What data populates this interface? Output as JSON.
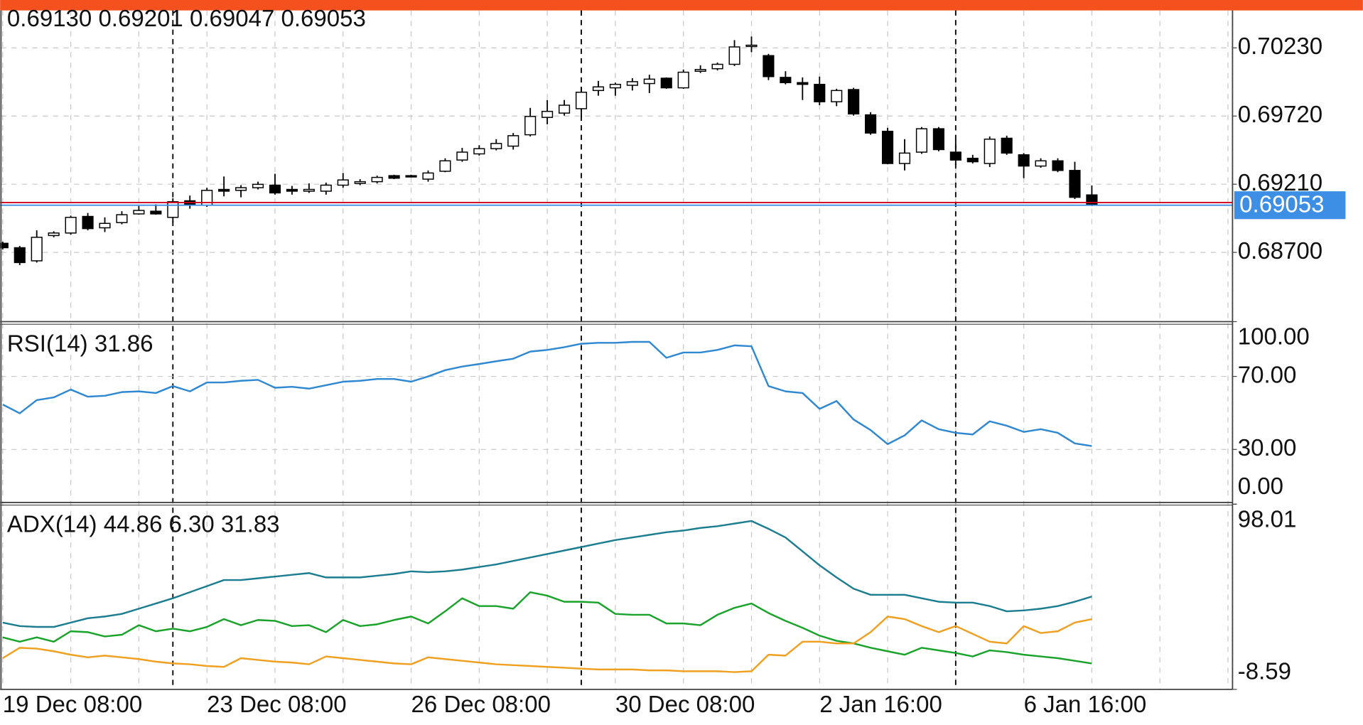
{
  "chart_data": [
    {
      "type": "candlestick",
      "ohlc_label": "0.69130 0.69201 0.69047 0.69053",
      "categories": [
        "19 Dec 08:00",
        null,
        null,
        null,
        null,
        null,
        null,
        null,
        null,
        null,
        null,
        null,
        "23 Dec 08:00",
        null,
        null,
        null,
        null,
        null,
        null,
        null,
        null,
        null,
        null,
        null,
        "26 Dec 08:00",
        null,
        null,
        null,
        null,
        null,
        null,
        null,
        null,
        null,
        null,
        null,
        "30 Dec 08:00",
        null,
        null,
        null,
        null,
        null,
        null,
        null,
        null,
        null,
        null,
        null,
        "2 Jan 16:00",
        null,
        null,
        null,
        null,
        null,
        null,
        null,
        null,
        null,
        null,
        null,
        "6 Jan 16:00",
        null,
        null,
        null,
        null
      ],
      "open": [
        0.68768,
        0.68735,
        0.68637,
        0.68826,
        0.68845,
        0.68969,
        0.68884,
        0.68923,
        0.68988,
        0.69008,
        0.68962,
        0.69086,
        0.69053,
        0.69171,
        0.69164,
        0.69184,
        0.69203,
        0.69171,
        0.69158,
        0.69158,
        0.69203,
        0.69216,
        0.69229,
        0.69274,
        0.69274,
        0.69248,
        0.69307,
        0.69391,
        0.69437,
        0.69476,
        0.69495,
        0.6958,
        0.6971,
        0.69742,
        0.69775,
        0.69911,
        0.69931,
        0.6995,
        0.69963,
        0.70003,
        0.69931,
        0.70055,
        0.70074,
        0.70107,
        0.7025,
        0.70172,
        0.70009,
        0.6997,
        0.69957,
        0.69827,
        0.69918,
        0.69729,
        0.69606,
        0.69365,
        0.6945,
        0.69625,
        0.6945,
        0.69404,
        0.69365,
        0.69554,
        0.6943,
        0.69346,
        0.69385,
        0.69313,
        0.6913
      ],
      "high": [
        0.6878,
        0.68748,
        0.68865,
        0.68858,
        0.68975,
        0.68995,
        0.68962,
        0.69008,
        0.69047,
        0.6906,
        0.69105,
        0.69125,
        0.69184,
        0.69268,
        0.69203,
        0.69229,
        0.69288,
        0.69197,
        0.69216,
        0.69222,
        0.69294,
        0.69248,
        0.69274,
        0.69281,
        0.69281,
        0.69313,
        0.69404,
        0.69482,
        0.69502,
        0.69547,
        0.69593,
        0.69781,
        0.6984,
        0.6984,
        0.69938,
        0.69983,
        0.6997,
        0.70003,
        0.70029,
        0.70009,
        0.70068,
        0.701,
        0.7012,
        0.70288,
        0.70315,
        0.70185,
        0.70055,
        0.70009,
        0.70015,
        0.69924,
        0.69931,
        0.69749,
        0.69632,
        0.69547,
        0.69638,
        0.69638,
        0.69547,
        0.6943,
        0.69567,
        0.69573,
        0.69443,
        0.69404,
        0.69404,
        0.69378,
        0.69201
      ],
      "low": [
        0.68722,
        0.68605,
        0.68624,
        0.68813,
        0.68832,
        0.68865,
        0.68852,
        0.6891,
        0.68982,
        0.68982,
        0.68923,
        0.69027,
        0.6904,
        0.69119,
        0.69112,
        0.69171,
        0.69132,
        0.69132,
        0.69145,
        0.69132,
        0.69184,
        0.69203,
        0.69216,
        0.69248,
        0.69261,
        0.69229,
        0.693,
        0.69378,
        0.69424,
        0.69463,
        0.69469,
        0.69567,
        0.69658,
        0.69723,
        0.6971,
        0.69872,
        0.69872,
        0.69911,
        0.69892,
        0.69924,
        0.69924,
        0.70042,
        0.70061,
        0.70094,
        0.70198,
        0.69989,
        0.69957,
        0.6984,
        0.69801,
        0.69794,
        0.69723,
        0.6958,
        0.69359,
        0.69313,
        0.69437,
        0.69456,
        0.69352,
        0.69365,
        0.69339,
        0.6943,
        0.69255,
        0.69333,
        0.693,
        0.69099,
        0.69047
      ],
      "close": [
        0.68735,
        0.68624,
        0.68813,
        0.68845,
        0.68962,
        0.68878,
        0.68917,
        0.68982,
        0.69014,
        0.68988,
        0.69079,
        0.69053,
        0.69164,
        0.69158,
        0.69184,
        0.69209,
        0.69145,
        0.69158,
        0.69171,
        0.69203,
        0.69242,
        0.69229,
        0.69261,
        0.69255,
        0.69268,
        0.69294,
        0.69385,
        0.6945,
        0.69476,
        0.69515,
        0.69573,
        0.69717,
        0.69755,
        0.69801,
        0.69898,
        0.69938,
        0.69957,
        0.69977,
        0.69996,
        0.69931,
        0.70048,
        0.70068,
        0.70107,
        0.70237,
        0.7025,
        0.70015,
        0.6997,
        0.69957,
        0.69827,
        0.69911,
        0.69736,
        0.69593,
        0.69365,
        0.69443,
        0.69625,
        0.69469,
        0.69391,
        0.69378,
        0.69547,
        0.69443,
        0.69346,
        0.69385,
        0.69313,
        0.69112,
        0.69053
      ],
      "up_color": "#ffffff",
      "down_color": "#000000",
      "last_price": 0.69053,
      "last_price_color": "#3d8fe6",
      "ask_line": 0.69073,
      "ask_color": "#d0021b",
      "ylim": [
        0.68182,
        0.70497
      ],
      "yticks": [
        {
          "value": 0.687,
          "label": "0.68700"
        },
        {
          "value": 0.6921,
          "label": "0.69210"
        },
        {
          "value": 0.6972,
          "label": "0.69720"
        },
        {
          "value": 0.7023,
          "label": "0.70230"
        }
      ],
      "grid": true
    },
    {
      "type": "line",
      "label": "RSI(14) 31.86",
      "color": "#2f88d0",
      "values": [
        54.6,
        49.8,
        57,
        58.5,
        62.8,
        58.9,
        59.4,
        61.4,
        61.8,
        60.9,
        64.7,
        61.8,
        66.7,
        66.7,
        67.6,
        68.1,
        63.8,
        64.3,
        63.3,
        65.2,
        67.1,
        67.6,
        68.6,
        68.6,
        67.1,
        70,
        73.4,
        75.4,
        76.8,
        78.3,
        79.7,
        83.6,
        84.5,
        86,
        87.9,
        88.4,
        88.4,
        88.9,
        88.9,
        80.2,
        83.1,
        83.1,
        84.5,
        87,
        86.5,
        64.7,
        61.8,
        60.9,
        52.2,
        56.5,
        46.4,
        40.6,
        32.9,
        37.7,
        45.9,
        41.1,
        39.1,
        38.2,
        45.4,
        43,
        39.6,
        41.1,
        39.1,
        33.3,
        31.86
      ],
      "ylim": [
        0,
        100
      ],
      "yticks": [
        {
          "value": 0,
          "label": "0.00"
        },
        {
          "value": 30,
          "label": "30.00"
        },
        {
          "value": 70,
          "label": "70.00"
        },
        {
          "value": 100,
          "label": "100.00"
        }
      ],
      "grid": true
    },
    {
      "type": "line",
      "label": "ADX(14) 44.86 6.30 31.83",
      "series": [
        {
          "color": "#1b7d8f",
          "values": [
            29.85,
            27.85,
            27.35,
            27.35,
            29.85,
            32.35,
            33.35,
            34.85,
            37.85,
            40.85,
            43.85,
            47.35,
            50.85,
            54.35,
            54.35,
            55.35,
            56.35,
            57.35,
            58.35,
            55.85,
            55.85,
            55.85,
            56.85,
            57.85,
            59.35,
            58.85,
            59.35,
            60.35,
            61.85,
            63.35,
            65.35,
            67.35,
            69.35,
            71.35,
            73.35,
            75.35,
            77.35,
            78.85,
            80.35,
            81.85,
            82.85,
            84.35,
            85.35,
            86.85,
            88.35,
            83.85,
            78.85,
            70.85,
            62.85,
            55.85,
            49.35,
            45.85,
            45.85,
            45.85,
            43.85,
            41.85,
            41.35,
            41.35,
            39.35,
            36.35,
            36.85,
            37.85,
            39.35,
            41.85,
            44.86
          ]
        },
        {
          "color": "#1aa32a",
          "values": [
            21.35,
            18.85,
            21.35,
            18.85,
            24.85,
            24.35,
            21.85,
            22.85,
            28.35,
            24.85,
            26.35,
            24.85,
            27.35,
            31.85,
            28.35,
            31.35,
            30.85,
            27.85,
            28.35,
            24.35,
            31.35,
            27.85,
            28.85,
            31.35,
            33.35,
            29.35,
            36.35,
            43.85,
            39.35,
            39.35,
            37.85,
            47.35,
            45.35,
            41.85,
            41.85,
            41.35,
            34.85,
            34.35,
            34.35,
            29.35,
            29.35,
            28.35,
            34.35,
            38.35,
            40.85,
            35.35,
            30.85,
            26.85,
            22.35,
            19.35,
            17.85,
            15.35,
            13.35,
            11.35,
            15.35,
            13.85,
            12.35,
            10.35,
            13.85,
            12.85,
            11.35,
            10.35,
            9.35,
            7.85,
            6.3
          ]
        },
        {
          "color": "#f0a020",
          "values": [
            9.35,
            15.35,
            14.85,
            13.35,
            11.35,
            9.85,
            10.85,
            9.85,
            8.85,
            7.35,
            6.35,
            5.85,
            4.85,
            4.35,
            9.35,
            8.35,
            7.35,
            6.85,
            5.85,
            10.35,
            9.35,
            8.35,
            7.35,
            6.35,
            5.85,
            9.85,
            8.85,
            7.85,
            6.85,
            5.85,
            5.35,
            4.85,
            4.35,
            3.85,
            3.35,
            2.85,
            2.85,
            2.85,
            2.35,
            2.35,
            1.85,
            1.85,
            1.85,
            1.35,
            1.85,
            11.35,
            10.85,
            18.85,
            18.85,
            17.85,
            17.85,
            24.35,
            33.35,
            31.85,
            27.85,
            24.35,
            27.85,
            23.35,
            18.85,
            17.85,
            27.85,
            23.85,
            24.85,
            29.85,
            31.83
          ]
        }
      ],
      "ylim": [
        -8.59,
        98.01
      ],
      "yticks": [
        -8.59,
        98.01
      ],
      "grid": false
    }
  ]
}
